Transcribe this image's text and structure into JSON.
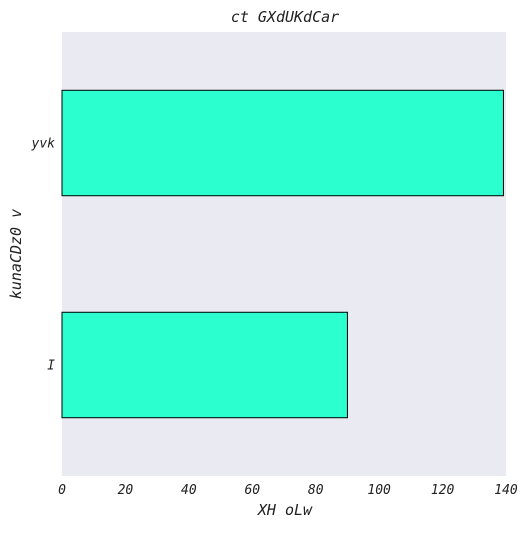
{
  "chart_data": {
    "type": "bar",
    "orientation": "horizontal",
    "title": "ct GXdUKdCar",
    "xlabel": "XH oLw",
    "ylabel": "kunaCDz0 v",
    "categories": [
      "yvk",
      "I"
    ],
    "values": [
      139.2,
      90.0
    ],
    "xlim": [
      0,
      140
    ],
    "xticks": [
      0,
      20,
      40,
      60,
      80,
      100,
      120,
      140
    ],
    "grid": false,
    "legend": "none",
    "colors": {
      "bar": "#2bffd0",
      "bar_edge": "#000000",
      "plot_background": "#eaeaf2"
    }
  }
}
